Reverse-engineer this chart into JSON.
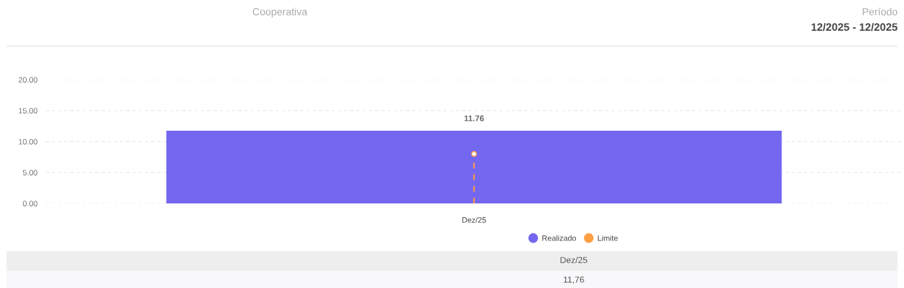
{
  "chart_data": {
    "type": "bar",
    "categories": [
      "Dez/25"
    ],
    "series": [
      {
        "name": "Realizado",
        "color": "#7367f0",
        "values": [
          11.76
        ],
        "value_labels": [
          "11.76"
        ]
      },
      {
        "name": "Limite",
        "type": "lollipop",
        "color": "#ff9f43",
        "values": [
          8
        ],
        "line_style": "dashed",
        "marker": "circle"
      }
    ],
    "ylim": [
      0,
      20
    ],
    "yticks": [
      {
        "value": 0,
        "label": "0.00"
      },
      {
        "value": 5,
        "label": "5.00"
      },
      {
        "value": 10,
        "label": "10.00"
      },
      {
        "value": 15,
        "label": "15.00"
      },
      {
        "value": 20,
        "label": "20.00"
      }
    ],
    "grid": "y",
    "legend": "bottom",
    "annotations": [
      "Cooperativa",
      "Período",
      "12/2025 - 12/2025",
      "11,76"
    ]
  }
}
